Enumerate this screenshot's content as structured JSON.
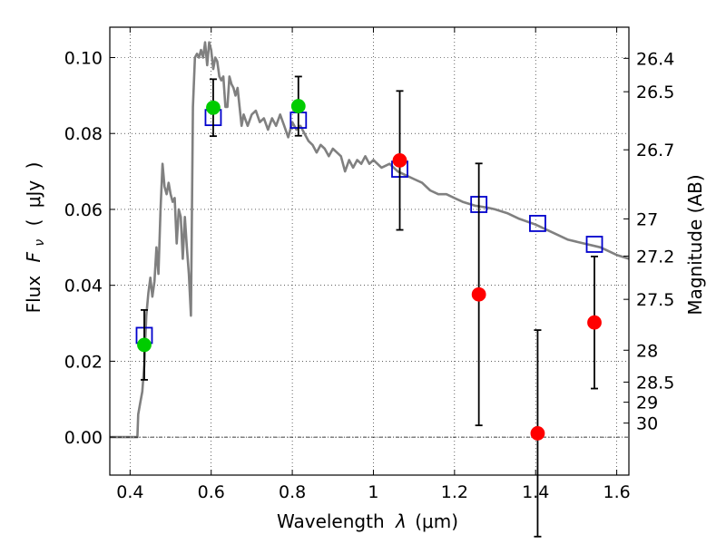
{
  "chart_data": {
    "type": "scatter",
    "xlabel": "Wavelength",
    "xlabel_symbol": "λ",
    "xlabel_unit": "(μm)",
    "ylabel": "Flux",
    "ylabel_symbol": "F",
    "ylabel_subscript": "ν",
    "ylabel_unit_open": "(",
    "ylabel_unit": "μJy",
    "ylabel_unit_close": ")",
    "y2label": "Magnitude (AB)",
    "xlim": [
      0.35,
      1.63
    ],
    "ylim": [
      -0.01,
      0.108
    ],
    "grid": true,
    "x_ticks": [
      0.4,
      0.6,
      0.8,
      1.0,
      1.2,
      1.4,
      1.6
    ],
    "x_tick_labels": [
      "0.4",
      "0.6",
      "0.8",
      "1",
      "1.2",
      "1.4",
      "1.6"
    ],
    "y_ticks": [
      0.0,
      0.02,
      0.04,
      0.06,
      0.08,
      0.1
    ],
    "y_tick_labels": [
      "0.00",
      "0.02",
      "0.04",
      "0.06",
      "0.08",
      "0.10"
    ],
    "y2_ticks": [
      {
        "flux": 0.0998,
        "label": "26.4"
      },
      {
        "flux": 0.091,
        "label": "26.5"
      },
      {
        "flux": 0.0757,
        "label": "26.7"
      },
      {
        "flux": 0.0575,
        "label": "27"
      },
      {
        "flux": 0.0477,
        "label": "27.2"
      },
      {
        "flux": 0.0363,
        "label": "27.5"
      },
      {
        "flux": 0.0229,
        "label": "28"
      },
      {
        "flux": 0.0145,
        "label": "28.5"
      },
      {
        "flux": 0.0092,
        "label": "29"
      },
      {
        "flux": 0.0037,
        "label": "30"
      }
    ],
    "series": [
      {
        "type": "line",
        "color": "#808080",
        "x": [
          0.35,
          0.418,
          0.42,
          0.425,
          0.43,
          0.435,
          0.44,
          0.445,
          0.45,
          0.455,
          0.46,
          0.465,
          0.47,
          0.475,
          0.48,
          0.485,
          0.49,
          0.495,
          0.5,
          0.505,
          0.51,
          0.515,
          0.52,
          0.525,
          0.53,
          0.535,
          0.54,
          0.545,
          0.55,
          0.555,
          0.56,
          0.565,
          0.57,
          0.575,
          0.58,
          0.585,
          0.59,
          0.595,
          0.6,
          0.605,
          0.61,
          0.615,
          0.62,
          0.625,
          0.63,
          0.635,
          0.64,
          0.645,
          0.65,
          0.655,
          0.66,
          0.665,
          0.67,
          0.675,
          0.68,
          0.69,
          0.7,
          0.71,
          0.72,
          0.73,
          0.74,
          0.75,
          0.76,
          0.77,
          0.78,
          0.79,
          0.8,
          0.81,
          0.82,
          0.83,
          0.84,
          0.85,
          0.86,
          0.87,
          0.88,
          0.89,
          0.9,
          0.91,
          0.92,
          0.93,
          0.94,
          0.95,
          0.96,
          0.97,
          0.98,
          0.99,
          1.0,
          1.02,
          1.04,
          1.06,
          1.08,
          1.1,
          1.12,
          1.14,
          1.16,
          1.18,
          1.2,
          1.22,
          1.25,
          1.28,
          1.3,
          1.33,
          1.36,
          1.4,
          1.44,
          1.48,
          1.52,
          1.56,
          1.6,
          1.63
        ],
        "y": [
          0.0,
          0.0,
          0.006,
          0.009,
          0.012,
          0.019,
          0.032,
          0.038,
          0.042,
          0.037,
          0.041,
          0.05,
          0.043,
          0.06,
          0.072,
          0.066,
          0.064,
          0.067,
          0.064,
          0.062,
          0.063,
          0.051,
          0.06,
          0.058,
          0.047,
          0.058,
          0.05,
          0.043,
          0.032,
          0.087,
          0.1,
          0.101,
          0.1,
          0.102,
          0.1,
          0.104,
          0.098,
          0.104,
          0.102,
          0.097,
          0.1,
          0.099,
          0.095,
          0.094,
          0.095,
          0.087,
          0.087,
          0.095,
          0.093,
          0.092,
          0.09,
          0.092,
          0.087,
          0.082,
          0.085,
          0.082,
          0.085,
          0.086,
          0.083,
          0.084,
          0.081,
          0.084,
          0.082,
          0.085,
          0.082,
          0.079,
          0.083,
          0.081,
          0.082,
          0.08,
          0.078,
          0.077,
          0.075,
          0.077,
          0.076,
          0.074,
          0.076,
          0.075,
          0.074,
          0.07,
          0.073,
          0.071,
          0.073,
          0.072,
          0.074,
          0.072,
          0.073,
          0.071,
          0.072,
          0.07,
          0.069,
          0.068,
          0.067,
          0.065,
          0.064,
          0.064,
          0.063,
          0.062,
          0.061,
          0.0605,
          0.06,
          0.059,
          0.0575,
          0.056,
          0.054,
          0.052,
          0.051,
          0.05,
          0.048,
          0.047
        ]
      },
      {
        "type": "open-square",
        "color": "#0000cc",
        "x": [
          0.435,
          0.605,
          0.815,
          1.065,
          1.26,
          1.405,
          1.545
        ],
        "y": [
          0.0268,
          0.0842,
          0.0835,
          0.0706,
          0.0613,
          0.0563,
          0.0508
        ]
      },
      {
        "type": "circle",
        "color": "#00cc00",
        "x": [
          0.435,
          0.605,
          0.815
        ],
        "y": [
          0.0243,
          0.0868,
          0.0872
        ],
        "err": [
          0.0092,
          0.0075,
          0.0078
        ]
      },
      {
        "type": "circle",
        "color": "#ff0000",
        "x": [
          1.065,
          1.26,
          1.405,
          1.545
        ],
        "y": [
          0.0729,
          0.0376,
          0.001,
          0.0302
        ],
        "err": [
          0.0183,
          0.0345,
          0.0272,
          0.0174
        ]
      }
    ]
  }
}
